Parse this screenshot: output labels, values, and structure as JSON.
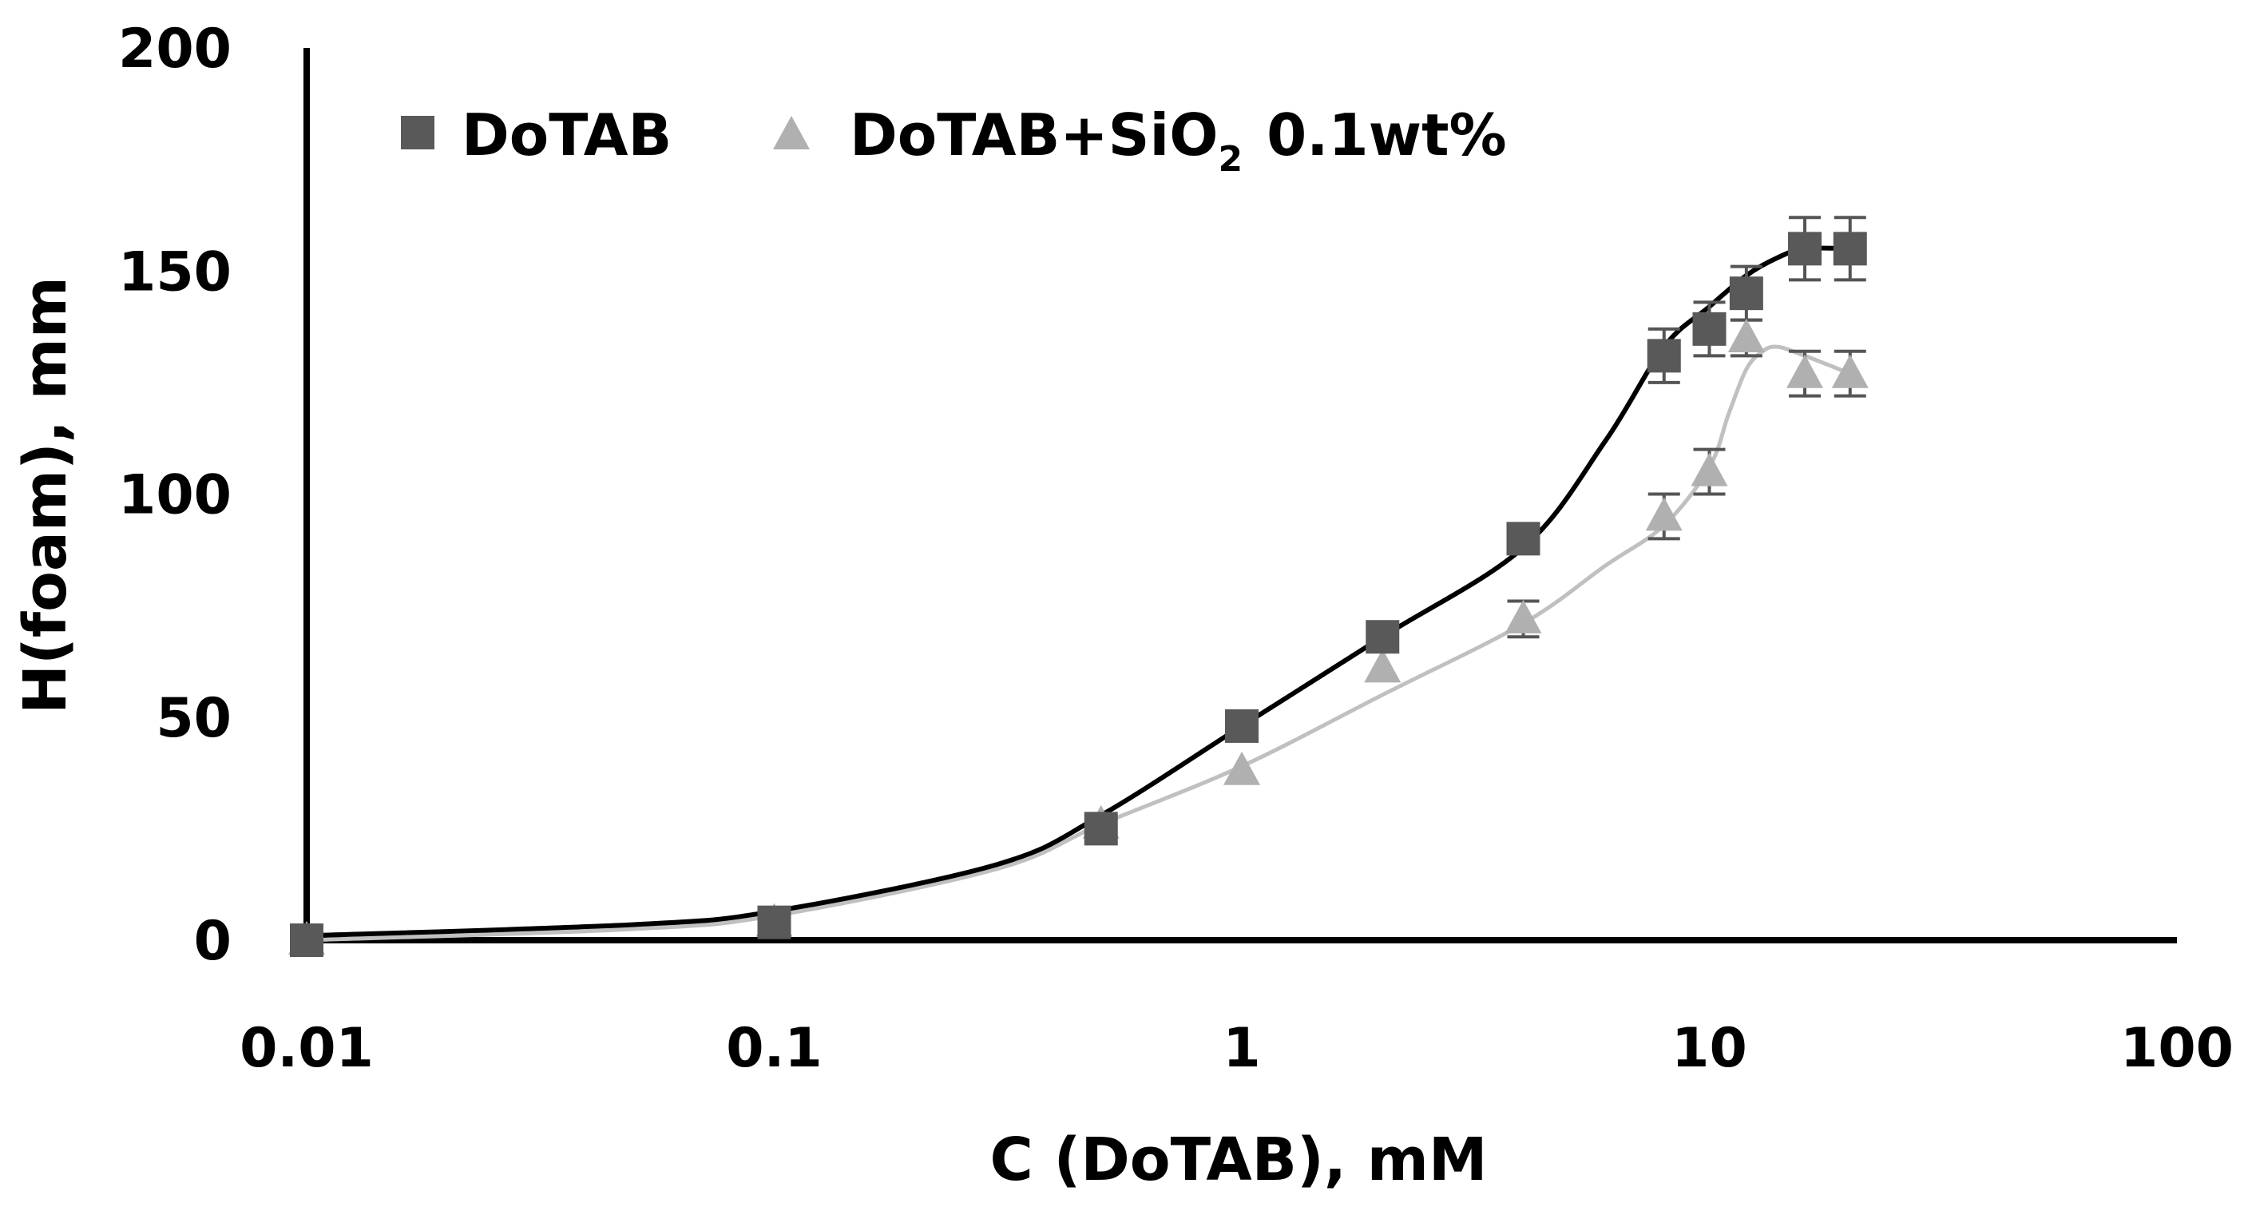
{
  "chart_data": {
    "type": "scatter",
    "xlabel": "C (DoTAB), mM",
    "ylabel": "H(foam), mm",
    "xscale": "log",
    "xlim": [
      0.01,
      100
    ],
    "ylim": [
      0,
      200
    ],
    "x_ticks": [
      "0.01",
      "0.1",
      "1",
      "10",
      "100"
    ],
    "y_ticks": [
      "0",
      "50",
      "100",
      "150",
      "200"
    ],
    "grid": false,
    "legend_position": "top-left",
    "series": [
      {
        "name": "DoTAB",
        "marker": "square",
        "color": "#595959",
        "line_color": "#000000",
        "x": [
          0.01,
          0.1,
          0.5,
          1,
          2,
          4,
          8,
          10,
          12,
          16,
          20
        ],
        "y": [
          0,
          4,
          25,
          48,
          68,
          90,
          131,
          137,
          145,
          155,
          155
        ],
        "error": [
          0,
          0,
          0,
          0,
          0,
          0,
          6,
          6,
          6,
          7,
          7
        ],
        "fit_x": [
          0.01,
          0.05,
          0.1,
          0.3,
          0.5,
          1,
          2,
          4,
          6,
          8,
          10,
          12,
          14,
          16,
          20
        ],
        "fit_y": [
          1,
          3.5,
          6.5,
          17,
          28,
          48,
          68,
          88,
          112,
          133,
          142,
          149,
          153,
          155,
          155
        ]
      },
      {
        "name": "DoTAB+SiO",
        "name_subscript": "2",
        "name_suffix": "0.1wt%",
        "marker": "triangle",
        "color": "#b0b0b0",
        "line_color": "#c0c0c0",
        "x": [
          0.01,
          0.1,
          0.5,
          1,
          2,
          4,
          8,
          10,
          12,
          16,
          20
        ],
        "y": [
          0,
          4,
          26,
          38,
          61,
          72,
          95,
          105,
          135,
          127,
          127
        ],
        "error": [
          0,
          0,
          0,
          0,
          0,
          4,
          5,
          5,
          4,
          5,
          5
        ],
        "fit_x": [
          0.01,
          0.05,
          0.1,
          0.3,
          0.5,
          1,
          2,
          4,
          6,
          8,
          10,
          11,
          12,
          13,
          14,
          16,
          20
        ],
        "fit_y": [
          0,
          2.5,
          5.5,
          16,
          26,
          39,
          55,
          71,
          84,
          93,
          106,
          118,
          128,
          132,
          133,
          131,
          127
        ]
      }
    ]
  }
}
